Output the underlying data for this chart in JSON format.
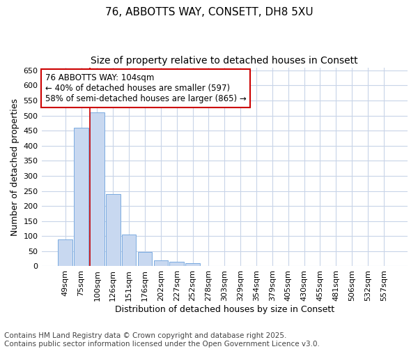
{
  "title_line1": "76, ABBOTTS WAY, CONSETT, DH8 5XU",
  "title_line2": "Size of property relative to detached houses in Consett",
  "xlabel": "Distribution of detached houses by size in Consett",
  "ylabel": "Number of detached properties",
  "categories": [
    "49sqm",
    "75sqm",
    "100sqm",
    "126sqm",
    "151sqm",
    "176sqm",
    "202sqm",
    "227sqm",
    "252sqm",
    "278sqm",
    "303sqm",
    "329sqm",
    "354sqm",
    "379sqm",
    "405sqm",
    "430sqm",
    "455sqm",
    "481sqm",
    "506sqm",
    "532sqm",
    "557sqm"
  ],
  "values": [
    90,
    460,
    510,
    240,
    105,
    48,
    20,
    15,
    10,
    2,
    2,
    2,
    2,
    2,
    2,
    2,
    2,
    2,
    2,
    2,
    2
  ],
  "bar_color": "#c8d8f0",
  "bar_edge_color": "#7aabe0",
  "vline_color": "#cc0000",
  "vline_x_index": 2,
  "ylim": [
    0,
    660
  ],
  "yticks": [
    0,
    50,
    100,
    150,
    200,
    250,
    300,
    350,
    400,
    450,
    500,
    550,
    600,
    650
  ],
  "annotation_text": "76 ABBOTTS WAY: 104sqm\n← 40% of detached houses are smaller (597)\n58% of semi-detached houses are larger (865) →",
  "annotation_box_facecolor": "#ffffff",
  "annotation_box_edgecolor": "#cc0000",
  "footnote_line1": "Contains HM Land Registry data © Crown copyright and database right 2025.",
  "footnote_line2": "Contains public sector information licensed under the Open Government Licence v3.0.",
  "bg_color": "#ffffff",
  "plot_bg_color": "#ffffff",
  "grid_color": "#c8d4e8",
  "title_fontsize": 11,
  "subtitle_fontsize": 10,
  "axis_label_fontsize": 9,
  "tick_fontsize": 8,
  "annotation_fontsize": 8.5,
  "footnote_fontsize": 7.5
}
